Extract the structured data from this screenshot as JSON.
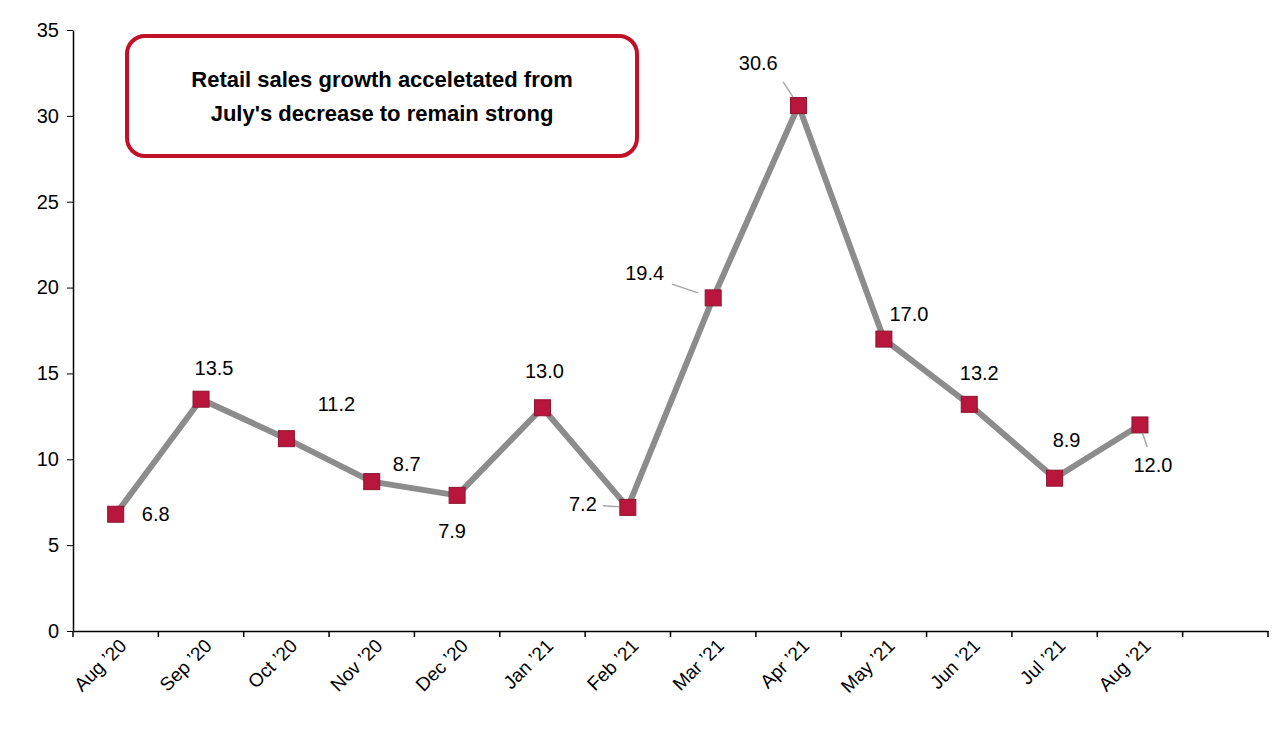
{
  "chart_data": {
    "type": "line",
    "annotation": [
      "Retail sales growth acceletated from",
      "July's decrease to remain strong"
    ],
    "categories": [
      "Aug ’20",
      "Sep ’20",
      "Oct ’20",
      "Nov ’20",
      "Dec ’20",
      "Jan ’21",
      "Feb ’21",
      "Mar ’21",
      "Apr ’21",
      "May ’21",
      "Jun ’21",
      "Jul ’21",
      "Aug ’21",
      null
    ],
    "values": [
      6.8,
      13.5,
      11.2,
      8.7,
      7.9,
      13.0,
      7.2,
      19.4,
      30.6,
      17.0,
      13.2,
      8.9,
      12.0,
      null
    ],
    "value_labels": [
      "6.8",
      "13.5",
      "11.2",
      "8.7",
      "7.9",
      "13.0",
      "7.2",
      "19.4",
      "30.6",
      "17.0",
      "13.2",
      "8.9",
      "12.0",
      null
    ],
    "data_labels": true,
    "color": "#b8163c",
    "marker": "square",
    "ylim": [
      0,
      35
    ],
    "yticks": [
      0,
      5,
      10,
      15,
      20,
      25,
      30,
      35
    ],
    "grid": false
  }
}
